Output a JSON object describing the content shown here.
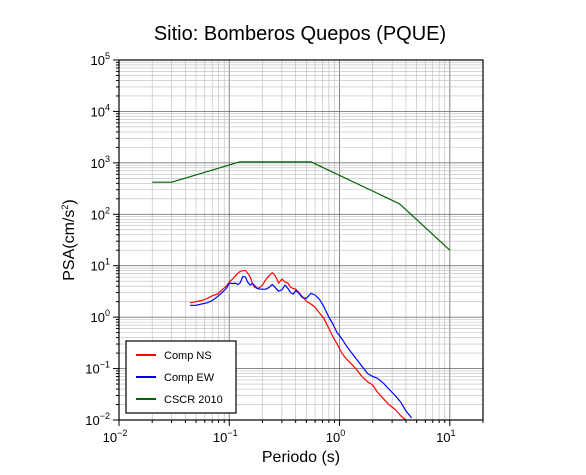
{
  "chart_data": {
    "type": "line",
    "title": "Sitio: Bomberos Quepos (PQUE)",
    "xlabel": "Periodo (s)",
    "ylabel": "PSA(cm/s",
    "ylabel_sup": "2",
    "ylabel_end": ")",
    "xscale": "log",
    "yscale": "log",
    "xlim": [
      0.01,
      20
    ],
    "ylim": [
      0.01,
      100000
    ],
    "grid": true,
    "legend_position": "bottom-left",
    "x_ticks": [
      {
        "base": "10",
        "exp": "−2"
      },
      {
        "base": "10",
        "exp": "−1"
      },
      {
        "base": "10",
        "exp": "0"
      },
      {
        "base": "10",
        "exp": "1"
      }
    ],
    "y_ticks": [
      {
        "base": "10",
        "exp": "−2"
      },
      {
        "base": "10",
        "exp": "−1"
      },
      {
        "base": "10",
        "exp": "0"
      },
      {
        "base": "10",
        "exp": "1"
      },
      {
        "base": "10",
        "exp": "2"
      },
      {
        "base": "10",
        "exp": "3"
      },
      {
        "base": "10",
        "exp": "4"
      },
      {
        "base": "10",
        "exp": "5"
      }
    ],
    "series": [
      {
        "name": "Comp NS",
        "color": "#ff0000",
        "x": [
          0.044,
          0.05,
          0.056,
          0.063,
          0.07,
          0.078,
          0.086,
          0.094,
          0.1,
          0.108,
          0.114,
          0.12,
          0.126,
          0.133,
          0.14,
          0.147,
          0.155,
          0.162,
          0.17,
          0.18,
          0.19,
          0.2,
          0.215,
          0.23,
          0.245,
          0.26,
          0.28,
          0.3,
          0.32,
          0.34,
          0.36,
          0.38,
          0.4,
          0.43,
          0.46,
          0.5,
          0.55,
          0.6,
          0.66,
          0.72,
          0.8,
          0.88,
          0.95,
          1.05,
          1.15,
          1.25,
          1.4,
          1.6,
          1.8,
          2.0,
          2.2,
          2.5,
          2.8,
          3.2,
          3.6,
          4.0
        ],
        "y": [
          1.9,
          2.0,
          2.1,
          2.3,
          2.6,
          2.8,
          3.4,
          4.0,
          4.8,
          5.6,
          6.4,
          7.2,
          7.8,
          8.0,
          8.1,
          7.2,
          6.0,
          4.5,
          3.8,
          3.6,
          3.8,
          4.2,
          5.4,
          6.4,
          7.3,
          6.5,
          4.6,
          5.5,
          4.8,
          4.6,
          3.8,
          3.6,
          3.5,
          3.0,
          2.5,
          2.05,
          1.8,
          1.55,
          1.2,
          0.95,
          0.6,
          0.4,
          0.3,
          0.2,
          0.155,
          0.13,
          0.1,
          0.07,
          0.055,
          0.048,
          0.035,
          0.026,
          0.02,
          0.016,
          0.012,
          0.01
        ]
      },
      {
        "name": "Comp EW",
        "color": "#0000ff",
        "x": [
          0.044,
          0.05,
          0.056,
          0.063,
          0.07,
          0.078,
          0.086,
          0.094,
          0.1,
          0.108,
          0.114,
          0.12,
          0.126,
          0.133,
          0.14,
          0.147,
          0.155,
          0.162,
          0.17,
          0.18,
          0.19,
          0.2,
          0.215,
          0.23,
          0.245,
          0.26,
          0.28,
          0.3,
          0.32,
          0.34,
          0.36,
          0.38,
          0.4,
          0.43,
          0.46,
          0.5,
          0.55,
          0.6,
          0.66,
          0.72,
          0.8,
          0.88,
          0.95,
          1.05,
          1.15,
          1.25,
          1.4,
          1.6,
          1.8,
          2.0,
          2.2,
          2.5,
          2.8,
          3.2,
          3.6,
          4.0,
          4.5
        ],
        "y": [
          1.7,
          1.7,
          1.8,
          1.9,
          2.1,
          2.5,
          3.0,
          3.6,
          4.6,
          4.5,
          4.6,
          4.3,
          4.7,
          6.2,
          6.0,
          4.8,
          4.2,
          4.5,
          4.1,
          3.6,
          3.5,
          3.5,
          3.5,
          3.8,
          4.3,
          3.8,
          3.2,
          3.4,
          4.2,
          3.6,
          3.0,
          2.8,
          3.3,
          2.9,
          2.4,
          2.3,
          2.9,
          2.7,
          2.2,
          1.6,
          1.0,
          0.7,
          0.5,
          0.38,
          0.28,
          0.22,
          0.16,
          0.11,
          0.08,
          0.07,
          0.065,
          0.052,
          0.04,
          0.03,
          0.022,
          0.015,
          0.011
        ]
      },
      {
        "name": "CSCR 2010",
        "color": "#006400",
        "x": [
          0.02,
          0.03,
          0.125,
          0.55,
          3.5,
          10
        ],
        "y": [
          420,
          420,
          1050,
          1050,
          160,
          20
        ]
      }
    ]
  }
}
